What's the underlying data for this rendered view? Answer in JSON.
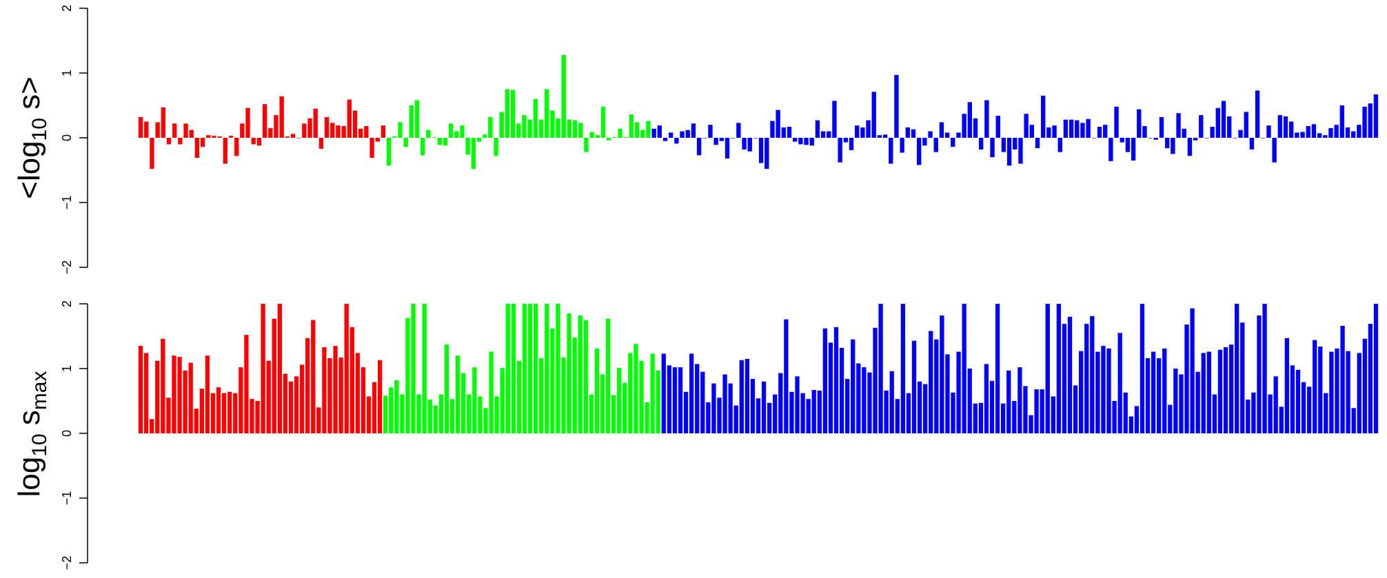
{
  "chart_data": [
    {
      "type": "bar",
      "panel": "top",
      "ylabel_main": "<log",
      "ylabel_sub": "10",
      "ylabel_tail": " s>",
      "ylim": [
        -2,
        2
      ],
      "yticks": [
        -2,
        -1,
        0,
        1,
        2
      ],
      "ytick_labels": [
        "−2",
        "−1",
        "0",
        "1",
        "2"
      ],
      "grid": false,
      "legend": "none",
      "series": [
        {
          "color": "#FF0000",
          "values": [
            0.32,
            0.25,
            -0.48,
            0.24,
            0.47,
            -0.1,
            0.22,
            -0.1,
            0.22,
            0.12,
            -0.31,
            -0.14,
            0.04,
            0.03,
            0.02,
            -0.4,
            0.03,
            -0.28,
            0.22,
            0.46,
            -0.1,
            -0.12,
            0.52,
            0.15,
            0.35,
            0.64,
            0.02,
            0.06,
            0.0,
            0.22,
            0.3,
            0.45,
            -0.17,
            0.32,
            0.23,
            0.19,
            0.18,
            0.59,
            0.42,
            0.14,
            0.18,
            -0.31,
            -0.06,
            0.19
          ]
        },
        {
          "color": "#00FF00",
          "values": [
            -0.43,
            0.02,
            0.24,
            -0.14,
            0.5,
            0.58,
            -0.27,
            0.12,
            0.01,
            -0.11,
            -0.12,
            0.22,
            0.1,
            0.19,
            -0.26,
            -0.48,
            -0.06,
            0.05,
            0.32,
            -0.28,
            0.4,
            0.75,
            0.74,
            0.22,
            0.35,
            0.28,
            0.6,
            0.28,
            0.75,
            0.42,
            0.3,
            1.28,
            0.28,
            0.27,
            0.23,
            -0.22,
            0.09,
            0.04,
            0.48,
            -0.04,
            0.01,
            0.14,
            0.01,
            0.36,
            0.24,
            0.12,
            0.26
          ]
        },
        {
          "color": "#0000FF",
          "values": [
            0.14,
            0.19,
            -0.05,
            0.08,
            -0.09,
            0.1,
            0.12,
            0.22,
            -0.27,
            0.0,
            0.2,
            -0.11,
            -0.05,
            -0.32,
            0.0,
            0.23,
            -0.18,
            -0.21,
            0.0,
            -0.39,
            -0.48,
            0.26,
            0.43,
            0.16,
            0.17,
            -0.06,
            -0.1,
            -0.11,
            -0.12,
            0.27,
            0.1,
            0.1,
            0.57,
            -0.38,
            -0.07,
            -0.19,
            0.19,
            0.16,
            0.27,
            0.71,
            0.04,
            0.05,
            -0.4,
            0.97,
            -0.23,
            0.16,
            0.13,
            -0.42,
            -0.12,
            0.1,
            -0.22,
            0.24,
            0.08,
            -0.14,
            0.08,
            0.37,
            0.55,
            0.3,
            -0.18,
            0.58,
            -0.3,
            0.34,
            -0.22,
            -0.43,
            -0.18,
            -0.4,
            0.37,
            0.2,
            -0.16,
            0.65,
            0.16,
            0.19,
            -0.22,
            0.28,
            0.28,
            0.27,
            0.23,
            0.29,
            0.0,
            0.17,
            0.2,
            -0.36,
            0.48,
            -0.07,
            -0.22,
            -0.35,
            0.44,
            0.18,
            0.0,
            -0.03,
            0.32,
            -0.16,
            -0.25,
            0.38,
            0.14,
            -0.28,
            -0.04,
            0.35,
            0.0,
            0.17,
            0.46,
            0.57,
            0.33,
            0.0,
            0.12,
            0.4,
            -0.18,
            0.73,
            0.0,
            0.19,
            -0.38,
            0.35,
            0.33,
            0.25,
            0.08,
            0.09,
            0.18,
            0.21,
            0.07,
            0.04,
            0.15,
            0.2,
            0.5,
            0.16,
            0.1,
            0.2,
            0.48,
            0.53,
            0.67
          ]
        }
      ]
    },
    {
      "type": "bar",
      "panel": "bottom",
      "ylabel_main": "log",
      "ylabel_sub": "10",
      "ylabel_tail": " s",
      "ylabel_sub2": "max",
      "ylim": [
        -2,
        2
      ],
      "yticks": [
        -2,
        -1,
        0,
        1,
        2
      ],
      "ytick_labels": [
        "−2",
        "−1",
        "0",
        "1",
        "2"
      ],
      "grid": false,
      "legend": "none",
      "series": [
        {
          "color": "#FF0000",
          "values": [
            1.35,
            1.24,
            0.22,
            1.12,
            1.46,
            0.55,
            1.2,
            1.18,
            0.97,
            1.09,
            0.38,
            0.69,
            1.2,
            0.62,
            0.71,
            0.62,
            0.64,
            0.62,
            1.02,
            1.52,
            0.53,
            0.5,
            2.0,
            1.12,
            1.77,
            2.0,
            0.92,
            0.8,
            0.88,
            1.06,
            1.47,
            1.75,
            0.4,
            1.33,
            1.16,
            1.35,
            1.17,
            2.0,
            1.64,
            1.24,
            1.02,
            0.57,
            0.79,
            1.13
          ]
        },
        {
          "color": "#00FF00",
          "values": [
            0.58,
            0.71,
            0.82,
            0.6,
            1.78,
            2.0,
            0.6,
            2.0,
            0.52,
            0.43,
            0.6,
            1.37,
            0.53,
            1.2,
            0.93,
            0.6,
            1.02,
            0.57,
            0.39,
            1.26,
            0.57,
            1.01,
            2.0,
            2.0,
            1.12,
            2.0,
            2.0,
            2.0,
            1.16,
            2.0,
            1.62,
            2.0,
            1.17,
            1.85,
            1.48,
            1.82,
            1.75,
            0.6,
            1.31,
            0.91,
            1.77,
            0.59,
            1.01,
            0.78,
            1.24,
            1.38,
            1.12,
            0.48,
            1.23,
            0.97
          ]
        },
        {
          "color": "#0000FF",
          "values": [
            1.23,
            1.05,
            1.02,
            1.02,
            0.64,
            1.23,
            1.07,
            0.95,
            0.48,
            0.77,
            0.55,
            0.91,
            0.77,
            0.43,
            1.13,
            1.15,
            0.84,
            0.54,
            0.8,
            0.47,
            0.6,
            0.93,
            1.76,
            0.64,
            0.88,
            0.62,
            0.53,
            0.67,
            0.66,
            1.62,
            1.4,
            1.64,
            1.32,
            0.84,
            1.45,
            1.08,
            1.02,
            0.94,
            1.63,
            2.0,
            0.66,
            0.96,
            0.53,
            2.0,
            0.62,
            1.43,
            0.8,
            0.76,
            1.58,
            1.45,
            1.82,
            1.22,
            0.63,
            1.26,
            2.0,
            1.0,
            0.46,
            0.47,
            1.07,
            0.81,
            2.0,
            0.46,
            0.97,
            0.5,
            1.02,
            0.73,
            0.28,
            0.68,
            0.68,
            2.0,
            0.57,
            2.0,
            1.69,
            1.8,
            0.74,
            1.27,
            1.69,
            1.81,
            1.26,
            1.35,
            1.31,
            0.5,
            1.55,
            0.63,
            0.26,
            0.42,
            2.0,
            1.16,
            1.26,
            1.16,
            1.31,
            0.44,
            1.0,
            0.91,
            1.68,
            1.93,
            0.95,
            1.24,
            1.26,
            0.6,
            1.29,
            1.33,
            1.37,
            2.0,
            1.71,
            0.52,
            0.63,
            1.82,
            2.0,
            0.6,
            0.88,
            0.41,
            1.47,
            1.05,
            0.98,
            0.79,
            0.72,
            1.44,
            1.34,
            0.62,
            1.26,
            1.31,
            1.66,
            1.27,
            0.39,
            1.24,
            1.46,
            1.69,
            2.0
          ]
        }
      ]
    }
  ]
}
